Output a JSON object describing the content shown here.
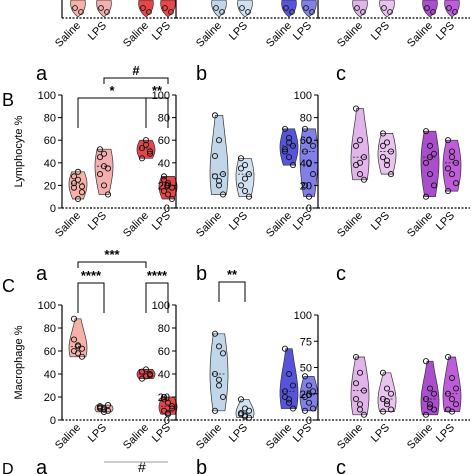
{
  "colors": {
    "saline_wt": "#f4a59a",
    "lps_wt": "#f2a0a0",
    "saline_ko": "#e2262a",
    "lps_ko": "#e2262a",
    "saline_b": "#b7cfe6",
    "lps_b": "#c9dcee",
    "saline_b2": "#3a36d6",
    "lps_b2": "#6d69e4",
    "saline_c": "#dca8e6",
    "lps_c": "#e6b8ec",
    "saline_c2": "#9b2fc4",
    "lps_c2": "#b43fd2",
    "axis": "#000000"
  },
  "chart_data": [
    {
      "type": "violin",
      "row": "B",
      "panel": "a",
      "ylabel": "Lymphocyte %",
      "ylim": [
        0,
        100
      ],
      "yticks": [
        "0",
        "20",
        "40",
        "60",
        "80",
        "100"
      ],
      "categories": [
        "Saline",
        "LPS",
        "Saline",
        "LPS"
      ],
      "series": [
        {
          "values": [
            28,
            32,
            14,
            22,
            25,
            19,
            18,
            8
          ]
        },
        {
          "values": [
            52,
            48,
            35,
            30,
            20,
            12,
            45,
            37
          ]
        },
        {
          "values": [
            53,
            56,
            48,
            44,
            60,
            50
          ]
        },
        {
          "values": [
            28,
            22,
            18,
            15,
            12,
            8,
            25,
            20
          ]
        }
      ],
      "annotations": [
        "*",
        "**",
        "#"
      ]
    },
    {
      "type": "violin",
      "row": "B",
      "panel": "b",
      "ylim": [
        0,
        100
      ],
      "yticks": [
        "0",
        "20",
        "40",
        "60",
        "80",
        "100"
      ],
      "categories": [
        "Saline",
        "LPS",
        "",
        ""
      ],
      "series": [
        {
          "values": [
            82,
            60,
            30,
            28,
            20,
            12,
            46,
            24
          ]
        },
        {
          "values": [
            44,
            38,
            30,
            20,
            15,
            10,
            35,
            26
          ]
        },
        {
          "values": [
            70,
            62,
            55,
            50,
            45,
            38,
            52,
            58
          ]
        },
        {
          "values": [
            70,
            60,
            55,
            50,
            40,
            30,
            20,
            10
          ]
        }
      ],
      "annotations": []
    },
    {
      "type": "violin",
      "row": "B",
      "panel": "c",
      "ylim": [
        0,
        100
      ],
      "yticks": [
        "0",
        "20",
        "40",
        "60",
        "80",
        "100"
      ],
      "categories": [
        "Saline",
        "LPS",
        "",
        ""
      ],
      "series": [
        {
          "values": [
            88,
            60,
            45,
            38,
            30,
            25,
            55,
            40
          ]
        },
        {
          "values": [
            66,
            58,
            50,
            45,
            38,
            30,
            55,
            42
          ]
        },
        {
          "values": [
            68,
            55,
            48,
            40,
            30,
            20,
            10,
            45
          ]
        },
        {
          "values": [
            60,
            50,
            40,
            35,
            30,
            22,
            15,
            45
          ]
        }
      ],
      "annotations": []
    },
    {
      "type": "violin",
      "row": "C",
      "panel": "a",
      "ylabel": "Macrophage %",
      "ylim": [
        0,
        100
      ],
      "yticks": [
        "0",
        "20",
        "40",
        "60",
        "80",
        "100"
      ],
      "categories": [
        "Saline",
        "LPS",
        "Saline",
        "LPS"
      ],
      "series": [
        {
          "values": [
            88,
            65,
            62,
            60,
            58,
            55,
            70,
            64
          ]
        },
        {
          "values": [
            12,
            10,
            8,
            11,
            9,
            13,
            10,
            7
          ]
        },
        {
          "values": [
            42,
            38,
            40,
            36,
            44,
            39
          ]
        },
        {
          "values": [
            20,
            15,
            10,
            8,
            5,
            12,
            18,
            6
          ]
        }
      ],
      "annotations": [
        "***",
        "****",
        "****"
      ]
    },
    {
      "type": "violin",
      "row": "C",
      "panel": "b",
      "ylim": [
        0,
        100
      ],
      "yticks": [
        "0",
        "20",
        "40",
        "60",
        "80",
        "100"
      ],
      "categories": [
        "Saline",
        "LPS",
        "",
        ""
      ],
      "series": [
        {
          "values": [
            75,
            64,
            58,
            40,
            30,
            20,
            8,
            35
          ]
        },
        {
          "values": [
            18,
            10,
            8,
            5,
            3,
            2,
            6,
            4
          ]
        },
        {
          "values": [
            62,
            40,
            30,
            20,
            15,
            10,
            25,
            18
          ]
        },
        {
          "values": [
            38,
            30,
            25,
            20,
            15,
            10,
            8,
            22
          ]
        }
      ],
      "annotations": [
        "**"
      ]
    },
    {
      "type": "violin",
      "row": "C",
      "panel": "c",
      "ylim": [
        0,
        100
      ],
      "yticks": [
        "0",
        "25",
        "50",
        "75",
        "100"
      ],
      "categories": [
        "Saline",
        "LPS",
        "",
        ""
      ],
      "series": [
        {
          "values": [
            60,
            45,
            28,
            20,
            10,
            5,
            35,
            15
          ]
        },
        {
          "values": [
            45,
            30,
            25,
            20,
            15,
            10,
            8,
            18
          ]
        },
        {
          "values": [
            56,
            30,
            25,
            20,
            15,
            10,
            5,
            12
          ]
        },
        {
          "values": [
            60,
            40,
            30,
            25,
            20,
            15,
            10,
            8
          ]
        }
      ],
      "annotations": []
    }
  ],
  "texts": {
    "rowB": "B",
    "rowC": "C",
    "rowD": "D",
    "pa": "a",
    "pb": "b",
    "pc": "c",
    "hash": "#",
    "saline": "Saline",
    "lps": "LPS"
  }
}
